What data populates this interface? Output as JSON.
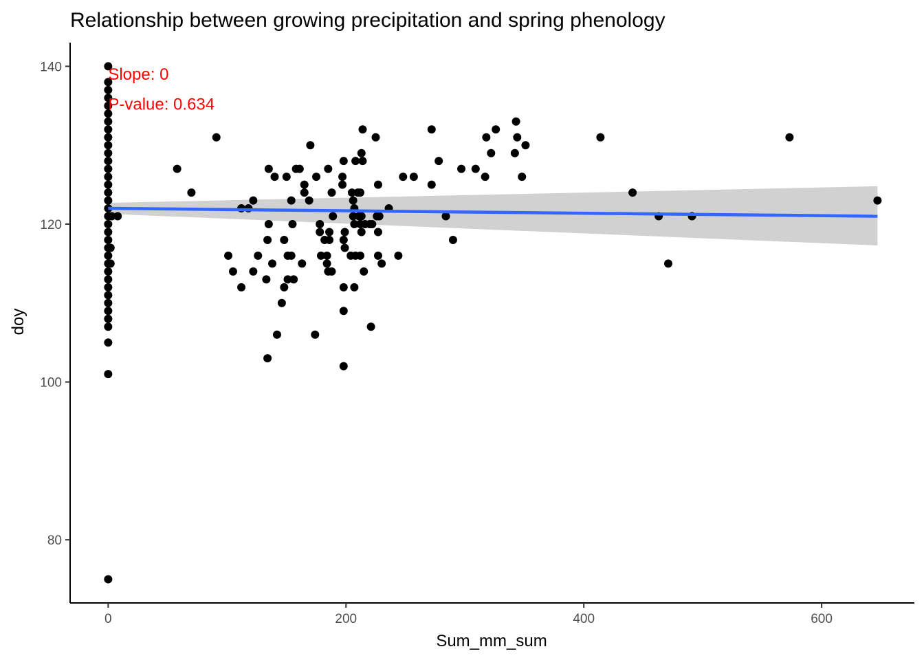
{
  "chart_data": {
    "type": "scatter",
    "title": "Relationship between growing precipitation and spring phenology",
    "xlabel": "Sum_mm_sum",
    "ylabel": "doy",
    "xlim": [
      -32,
      678
    ],
    "ylim": [
      72,
      143
    ],
    "xticks": [
      0,
      200,
      400,
      600
    ],
    "yticks": [
      80,
      100,
      120,
      140
    ],
    "grid": false,
    "annotations": [
      {
        "text": "Slope: 0",
        "x": 0,
        "y": 139,
        "color": "#ff0000"
      },
      {
        "text": "P-value: 0.634",
        "x": 0,
        "y": 135.2,
        "color": "#ff0000"
      }
    ],
    "regression": {
      "x": [
        0,
        647
      ],
      "y": [
        122.0,
        121.0
      ],
      "ci_lower": [
        121.3,
        117.3
      ],
      "ci_upper": [
        122.7,
        124.8
      ],
      "color": "#3366ff",
      "band_color": "#cccccc"
    },
    "series": [
      {
        "name": "points",
        "color": "#000000",
        "points": [
          [
            0,
            140
          ],
          [
            0,
            138
          ],
          [
            0,
            137
          ],
          [
            0,
            136
          ],
          [
            0,
            135
          ],
          [
            0,
            134
          ],
          [
            0,
            133
          ],
          [
            0,
            132
          ],
          [
            0,
            131
          ],
          [
            0,
            130
          ],
          [
            0,
            129
          ],
          [
            0,
            128
          ],
          [
            0,
            127
          ],
          [
            0,
            126
          ],
          [
            0,
            125
          ],
          [
            0,
            124
          ],
          [
            0,
            123
          ],
          [
            0,
            122
          ],
          [
            0,
            121
          ],
          [
            0,
            120
          ],
          [
            0,
            119
          ],
          [
            0,
            118
          ],
          [
            0,
            117
          ],
          [
            0,
            116
          ],
          [
            0,
            115
          ],
          [
            0,
            114
          ],
          [
            0,
            113
          ],
          [
            0,
            112
          ],
          [
            0,
            111
          ],
          [
            0,
            110
          ],
          [
            0,
            109
          ],
          [
            0,
            108
          ],
          [
            0,
            107
          ],
          [
            0,
            105
          ],
          [
            0,
            101
          ],
          [
            0,
            75
          ],
          [
            2,
            117
          ],
          [
            2,
            115
          ],
          [
            3,
            121
          ],
          [
            8,
            121
          ],
          [
            58,
            127
          ],
          [
            70,
            124
          ],
          [
            91,
            131
          ],
          [
            101,
            116
          ],
          [
            105,
            114
          ],
          [
            112,
            112
          ],
          [
            112,
            122
          ],
          [
            118,
            122
          ],
          [
            122,
            123
          ],
          [
            122,
            114
          ],
          [
            126,
            116
          ],
          [
            133,
            113
          ],
          [
            134,
            103
          ],
          [
            134,
            118
          ],
          [
            135,
            120
          ],
          [
            135,
            127
          ],
          [
            138,
            115
          ],
          [
            140,
            126
          ],
          [
            142,
            106
          ],
          [
            146,
            110
          ],
          [
            148,
            112
          ],
          [
            148,
            118
          ],
          [
            150,
            126
          ],
          [
            151,
            116
          ],
          [
            151,
            113
          ],
          [
            154,
            116
          ],
          [
            154,
            123
          ],
          [
            155,
            120
          ],
          [
            156,
            113
          ],
          [
            158,
            127
          ],
          [
            161,
            127
          ],
          [
            163,
            115
          ],
          [
            165,
            125
          ],
          [
            165,
            124
          ],
          [
            169,
            123
          ],
          [
            170,
            130
          ],
          [
            174,
            106
          ],
          [
            175,
            126
          ],
          [
            178,
            119
          ],
          [
            178,
            120
          ],
          [
            179,
            116
          ],
          [
            182,
            118
          ],
          [
            184,
            115
          ],
          [
            184,
            116
          ],
          [
            185,
            127
          ],
          [
            185,
            114
          ],
          [
            186,
            118
          ],
          [
            186,
            119
          ],
          [
            188,
            114
          ],
          [
            188,
            124
          ],
          [
            189,
            121
          ],
          [
            197,
            126
          ],
          [
            197,
            125
          ],
          [
            198,
            118
          ],
          [
            198,
            112
          ],
          [
            198,
            109
          ],
          [
            198,
            102
          ],
          [
            198,
            128
          ],
          [
            199,
            119
          ],
          [
            199,
            117
          ],
          [
            204,
            116
          ],
          [
            205,
            124
          ],
          [
            206,
            121
          ],
          [
            206,
            123
          ],
          [
            207,
            112
          ],
          [
            207,
            122
          ],
          [
            207,
            120
          ],
          [
            208,
            128
          ],
          [
            208,
            116
          ],
          [
            210,
            124
          ],
          [
            211,
            121
          ],
          [
            212,
            116
          ],
          [
            212,
            120
          ],
          [
            212,
            124
          ],
          [
            213,
            129
          ],
          [
            213,
            121
          ],
          [
            213,
            119
          ],
          [
            214,
            128
          ],
          [
            214,
            132
          ],
          [
            215,
            114
          ],
          [
            216,
            120
          ],
          [
            220,
            120
          ],
          [
            221,
            107
          ],
          [
            222,
            120
          ],
          [
            225,
            131
          ],
          [
            226,
            121
          ],
          [
            227,
            125
          ],
          [
            227,
            119
          ],
          [
            227,
            116
          ],
          [
            228,
            121
          ],
          [
            230,
            115
          ],
          [
            236,
            122
          ],
          [
            244,
            116
          ],
          [
            248,
            126
          ],
          [
            257,
            126
          ],
          [
            272,
            132
          ],
          [
            272,
            125
          ],
          [
            278,
            128
          ],
          [
            284,
            121
          ],
          [
            290,
            118
          ],
          [
            297,
            127
          ],
          [
            309,
            127
          ],
          [
            317,
            126
          ],
          [
            318,
            131
          ],
          [
            322,
            129
          ],
          [
            326,
            132
          ],
          [
            342,
            129
          ],
          [
            343,
            133
          ],
          [
            344,
            131
          ],
          [
            348,
            126
          ],
          [
            351,
            130
          ],
          [
            414,
            131
          ],
          [
            441,
            124
          ],
          [
            463,
            121
          ],
          [
            471,
            115
          ],
          [
            491,
            121
          ],
          [
            573,
            131
          ],
          [
            647,
            123
          ]
        ]
      }
    ]
  }
}
